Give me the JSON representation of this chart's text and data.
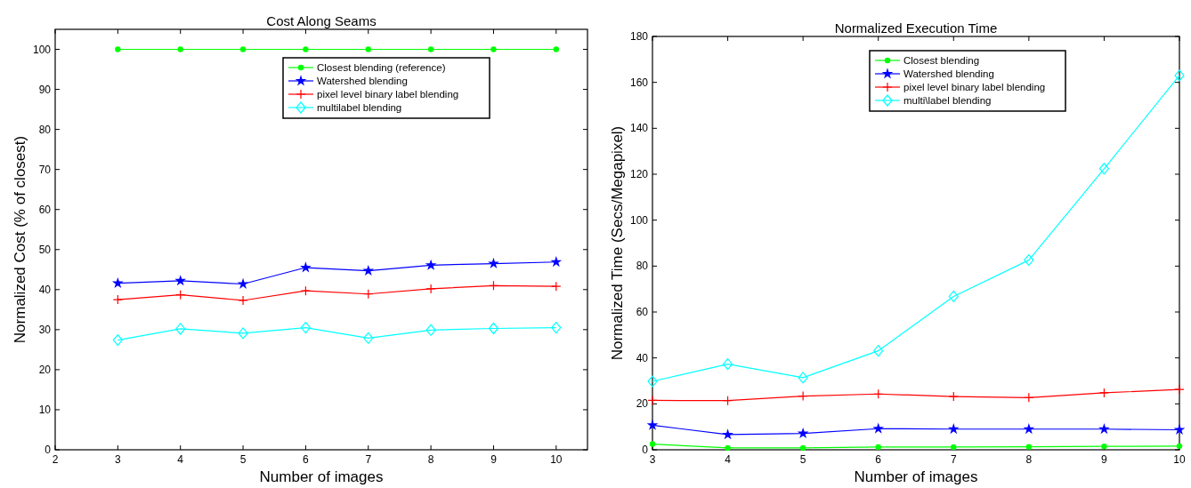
{
  "chart_data": [
    {
      "type": "line",
      "title": "Cost Along Seams",
      "xlabel": "Number of images",
      "ylabel": "Normalized Cost (% of closest)",
      "x": [
        3,
        4,
        5,
        6,
        7,
        8,
        9,
        10
      ],
      "xlim": [
        2,
        10.5
      ],
      "xticks": [
        2,
        3,
        4,
        5,
        6,
        7,
        8,
        9,
        10
      ],
      "ylim": [
        0,
        105
      ],
      "yticks": [
        0,
        10,
        20,
        30,
        40,
        50,
        60,
        70,
        80,
        90,
        100
      ],
      "legend": "top right",
      "grid": false,
      "line_style": "solid",
      "series": [
        {
          "name": "Closest blending (reference)",
          "color": "#00ff00",
          "marker": "circle",
          "values": [
            100,
            100,
            100,
            100,
            100,
            100,
            100,
            100
          ]
        },
        {
          "name": "Watershed blending",
          "color": "#0000ff",
          "marker": "star",
          "values": [
            41.6,
            42.2,
            41.4,
            45.5,
            44.7,
            46.1,
            46.5,
            46.9
          ]
        },
        {
          "name": "pixel level binary label blending",
          "color": "#ff0000",
          "marker": "cross",
          "values": [
            37.5,
            38.7,
            37.3,
            39.7,
            38.9,
            40.2,
            41.0,
            40.8
          ]
        },
        {
          "name": "multilabel blending",
          "color": "#00ffff",
          "marker": "diamond",
          "values": [
            27.4,
            30.2,
            29.1,
            30.5,
            27.9,
            29.9,
            30.3,
            30.5
          ]
        }
      ]
    },
    {
      "type": "line",
      "title": "Normalized Execution Time",
      "xlabel": "Number of images",
      "ylabel": "Normalized Time (Secs/Megapixel)",
      "x": [
        3,
        4,
        5,
        6,
        7,
        8,
        9,
        10
      ],
      "xlim": [
        3,
        10
      ],
      "xticks": [
        3,
        4,
        5,
        6,
        7,
        8,
        9,
        10
      ],
      "ylim": [
        0,
        180
      ],
      "yticks": [
        0,
        20,
        40,
        60,
        80,
        100,
        120,
        140,
        160,
        180
      ],
      "legend": "top right",
      "grid": false,
      "line_style": "solid",
      "series": [
        {
          "name": "Closest blending",
          "color": "#00ff00",
          "marker": "circle",
          "values": [
            2.5,
            0.8,
            0.8,
            1.2,
            1.2,
            1.3,
            1.5,
            1.6
          ]
        },
        {
          "name": "Watershed blending",
          "color": "#0000ff",
          "marker": "star",
          "values": [
            10.7,
            6.6,
            7.1,
            9.2,
            9.0,
            9.0,
            9.0,
            8.7
          ]
        },
        {
          "name": "pixel level binary label blending",
          "color": "#ff0000",
          "marker": "cross",
          "values": [
            21.5,
            21.4,
            23.4,
            24.3,
            23.2,
            22.7,
            24.8,
            26.3
          ]
        },
        {
          "name": "multi\\label blending",
          "color": "#00ffff",
          "marker": "diamond",
          "values": [
            29.8,
            37.3,
            31.4,
            43.1,
            66.8,
            82.6,
            122.4,
            163
          ]
        }
      ]
    }
  ]
}
